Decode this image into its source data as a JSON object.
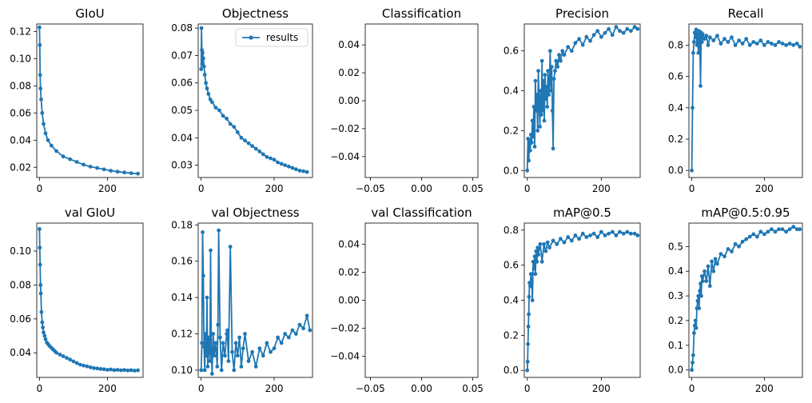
{
  "chart_data": [
    {
      "type": "line",
      "title": "GIoU",
      "xlim": [
        -8,
        305
      ],
      "ylim": [
        0.0125,
        0.1255
      ],
      "xticks": [
        0,
        200
      ],
      "xtick_labels": [
        "0",
        "200"
      ],
      "yticks": [
        0.02,
        0.04,
        0.06,
        0.08,
        0.1,
        0.12
      ],
      "ytick_labels": [
        "0.02",
        "0.04",
        "0.06",
        "0.08",
        "0.10",
        "0.12"
      ],
      "series": [
        {
          "x": [
            0,
            1,
            2,
            3,
            5,
            8,
            12,
            18,
            25,
            35,
            50,
            70,
            90,
            110,
            130,
            150,
            170,
            190,
            210,
            230,
            250,
            270,
            290
          ],
          "y": [
            0.123,
            0.11,
            0.088,
            0.078,
            0.07,
            0.06,
            0.052,
            0.045,
            0.04,
            0.036,
            0.032,
            0.028,
            0.026,
            0.024,
            0.022,
            0.0205,
            0.0195,
            0.0185,
            0.0175,
            0.0168,
            0.0162,
            0.0157,
            0.0153
          ]
        }
      ]
    },
    {
      "type": "line",
      "title": "Objectness",
      "xlim": [
        -8,
        305
      ],
      "ylim": [
        0.0255,
        0.0815
      ],
      "xticks": [
        0,
        200
      ],
      "xtick_labels": [
        "0",
        "200"
      ],
      "yticks": [
        0.03,
        0.04,
        0.05,
        0.06,
        0.07,
        0.08
      ],
      "ytick_labels": [
        "0.03",
        "0.04",
        "0.05",
        "0.06",
        "0.07",
        "0.08"
      ],
      "legend": {
        "labels": [
          "results"
        ],
        "loc": "upper right"
      },
      "series": [
        {
          "name": "results",
          "x": [
            0,
            1,
            2,
            3,
            4,
            6,
            8,
            10,
            13,
            16,
            20,
            25,
            30,
            40,
            50,
            60,
            70,
            80,
            90,
            100,
            110,
            120,
            130,
            140,
            150,
            160,
            170,
            180,
            190,
            200,
            210,
            220,
            230,
            240,
            250,
            260,
            270,
            280,
            290
          ],
          "y": [
            0.065,
            0.08,
            0.072,
            0.067,
            0.071,
            0.069,
            0.066,
            0.063,
            0.06,
            0.058,
            0.056,
            0.054,
            0.053,
            0.051,
            0.05,
            0.048,
            0.047,
            0.045,
            0.044,
            0.042,
            0.04,
            0.039,
            0.038,
            0.037,
            0.036,
            0.035,
            0.034,
            0.033,
            0.0325,
            0.032,
            0.031,
            0.0305,
            0.03,
            0.0295,
            0.029,
            0.0285,
            0.028,
            0.0278,
            0.0275
          ]
        }
      ]
    },
    {
      "type": "line",
      "title": "Classification",
      "xlim": [
        -0.055,
        0.055
      ],
      "ylim": [
        -0.055,
        0.055
      ],
      "xticks": [
        -0.05,
        0.0,
        0.05
      ],
      "xtick_labels": [
        "−0.05",
        "0.00",
        "0.05"
      ],
      "yticks": [
        -0.04,
        -0.02,
        0.0,
        0.02,
        0.04
      ],
      "ytick_labels": [
        "−0.04",
        "−0.02",
        "0.00",
        "0.02",
        "0.04"
      ],
      "series": []
    },
    {
      "type": "line",
      "title": "Precision",
      "xlim": [
        -8,
        305
      ],
      "ylim": [
        -0.035,
        0.735
      ],
      "xticks": [
        0,
        200
      ],
      "xtick_labels": [
        "0",
        "200"
      ],
      "yticks": [
        0.0,
        0.2,
        0.4,
        0.6
      ],
      "ytick_labels": [
        "0.0",
        "0.2",
        "0.4",
        "0.6"
      ],
      "series": [
        {
          "x": [
            0,
            2,
            4,
            6,
            8,
            10,
            12,
            14,
            16,
            18,
            20,
            22,
            24,
            26,
            28,
            30,
            32,
            34,
            36,
            38,
            40,
            42,
            44,
            46,
            48,
            50,
            52,
            54,
            56,
            58,
            60,
            62,
            64,
            66,
            68,
            70,
            72,
            75,
            78,
            82,
            86,
            90,
            95,
            100,
            110,
            120,
            130,
            140,
            150,
            160,
            170,
            180,
            190,
            200,
            210,
            220,
            230,
            240,
            250,
            260,
            270,
            280,
            290,
            298
          ],
          "y": [
            0.0,
            0.16,
            0.05,
            0.15,
            0.1,
            0.18,
            0.14,
            0.25,
            0.17,
            0.32,
            0.12,
            0.45,
            0.3,
            0.38,
            0.2,
            0.5,
            0.35,
            0.22,
            0.4,
            0.28,
            0.55,
            0.3,
            0.45,
            0.25,
            0.48,
            0.36,
            0.42,
            0.32,
            0.5,
            0.38,
            0.44,
            0.6,
            0.4,
            0.52,
            0.3,
            0.11,
            0.46,
            0.5,
            0.55,
            0.52,
            0.58,
            0.55,
            0.6,
            0.58,
            0.62,
            0.6,
            0.64,
            0.66,
            0.63,
            0.67,
            0.65,
            0.68,
            0.7,
            0.67,
            0.69,
            0.71,
            0.68,
            0.72,
            0.7,
            0.69,
            0.71,
            0.7,
            0.72,
            0.71
          ]
        }
      ]
    },
    {
      "type": "line",
      "title": "Recall",
      "xlim": [
        -8,
        305
      ],
      "ylim": [
        -0.045,
        0.935
      ],
      "xticks": [
        0,
        200
      ],
      "xtick_labels": [
        "0",
        "200"
      ],
      "yticks": [
        0.0,
        0.2,
        0.4,
        0.6,
        0.8
      ],
      "ytick_labels": [
        "0.0",
        "0.2",
        "0.4",
        "0.6",
        "0.8"
      ],
      "series": [
        {
          "x": [
            0,
            2,
            4,
            6,
            8,
            10,
            12,
            14,
            16,
            18,
            20,
            22,
            24,
            26,
            28,
            30,
            35,
            40,
            45,
            50,
            60,
            70,
            80,
            90,
            100,
            110,
            120,
            130,
            140,
            150,
            160,
            170,
            180,
            190,
            200,
            210,
            220,
            230,
            240,
            250,
            260,
            270,
            280,
            290,
            298
          ],
          "y": [
            0.0,
            0.4,
            0.75,
            0.82,
            0.88,
            0.85,
            0.9,
            0.8,
            0.87,
            0.75,
            0.89,
            0.86,
            0.54,
            0.88,
            0.82,
            0.87,
            0.84,
            0.86,
            0.8,
            0.85,
            0.83,
            0.86,
            0.81,
            0.84,
            0.82,
            0.85,
            0.8,
            0.83,
            0.81,
            0.84,
            0.8,
            0.82,
            0.81,
            0.83,
            0.8,
            0.82,
            0.81,
            0.8,
            0.82,
            0.81,
            0.8,
            0.81,
            0.8,
            0.81,
            0.79
          ]
        }
      ]
    },
    {
      "type": "line",
      "title": "val GIoU",
      "xlim": [
        -8,
        305
      ],
      "ylim": [
        0.0255,
        0.1165
      ],
      "xticks": [
        0,
        200
      ],
      "xtick_labels": [
        "0",
        "200"
      ],
      "yticks": [
        0.04,
        0.06,
        0.08,
        0.1
      ],
      "ytick_labels": [
        "0.04",
        "0.06",
        "0.08",
        "0.10"
      ],
      "series": [
        {
          "x": [
            0,
            1,
            2,
            3,
            4,
            6,
            8,
            10,
            12,
            15,
            18,
            22,
            26,
            30,
            35,
            40,
            45,
            50,
            60,
            70,
            80,
            90,
            100,
            110,
            120,
            130,
            140,
            150,
            160,
            170,
            180,
            190,
            200,
            210,
            220,
            230,
            240,
            250,
            260,
            270,
            280,
            290
          ],
          "y": [
            0.113,
            0.102,
            0.092,
            0.08,
            0.075,
            0.064,
            0.058,
            0.055,
            0.052,
            0.05,
            0.048,
            0.046,
            0.045,
            0.044,
            0.043,
            0.042,
            0.041,
            0.04,
            0.039,
            0.038,
            0.037,
            0.036,
            0.035,
            0.034,
            0.033,
            0.0325,
            0.032,
            0.0315,
            0.031,
            0.0308,
            0.0305,
            0.0303,
            0.03,
            0.0302,
            0.0298,
            0.03,
            0.0297,
            0.0299,
            0.0296,
            0.0298,
            0.0295,
            0.0297
          ]
        }
      ]
    },
    {
      "type": "line",
      "title": "val Objectness",
      "xlim": [
        -8,
        305
      ],
      "ylim": [
        0.096,
        0.181
      ],
      "xticks": [
        0,
        200
      ],
      "xtick_labels": [
        "0",
        "200"
      ],
      "yticks": [
        0.1,
        0.12,
        0.14,
        0.16,
        0.18
      ],
      "ytick_labels": [
        "0.10",
        "0.12",
        "0.14",
        "0.16",
        "0.18"
      ],
      "series": [
        {
          "x": [
            0,
            2,
            4,
            6,
            8,
            10,
            12,
            14,
            16,
            18,
            20,
            22,
            24,
            26,
            28,
            30,
            33,
            36,
            40,
            44,
            46,
            48,
            52,
            56,
            60,
            65,
            70,
            72,
            75,
            80,
            85,
            90,
            95,
            100,
            105,
            110,
            115,
            120,
            130,
            140,
            150,
            160,
            170,
            180,
            190,
            200,
            210,
            220,
            230,
            240,
            250,
            260,
            270,
            280,
            290,
            298
          ],
          "y": [
            0.1,
            0.115,
            0.176,
            0.152,
            0.113,
            0.1,
            0.12,
            0.108,
            0.14,
            0.102,
            0.118,
            0.112,
            0.105,
            0.166,
            0.11,
            0.098,
            0.12,
            0.108,
            0.115,
            0.102,
            0.125,
            0.177,
            0.118,
            0.1,
            0.115,
            0.108,
            0.12,
            0.122,
            0.105,
            0.168,
            0.11,
            0.1,
            0.115,
            0.108,
            0.118,
            0.102,
            0.112,
            0.12,
            0.105,
            0.11,
            0.102,
            0.112,
            0.108,
            0.115,
            0.11,
            0.112,
            0.118,
            0.115,
            0.12,
            0.118,
            0.122,
            0.12,
            0.125,
            0.123,
            0.13,
            0.122
          ]
        }
      ]
    },
    {
      "type": "line",
      "title": "val Classification",
      "xlim": [
        -0.055,
        0.055
      ],
      "ylim": [
        -0.055,
        0.055
      ],
      "xticks": [
        -0.05,
        0.0,
        0.05
      ],
      "xtick_labels": [
        "−0.05",
        "0.00",
        "0.05"
      ],
      "yticks": [
        -0.04,
        -0.02,
        0.0,
        0.02,
        0.04
      ],
      "ytick_labels": [
        "−0.04",
        "−0.02",
        "0.00",
        "0.02",
        "0.04"
      ],
      "series": []
    },
    {
      "type": "line",
      "title": "mAP@0.5",
      "xlim": [
        -8,
        305
      ],
      "ylim": [
        -0.04,
        0.84
      ],
      "xticks": [
        0,
        200
      ],
      "xtick_labels": [
        "0",
        "200"
      ],
      "yticks": [
        0.0,
        0.2,
        0.4,
        0.6,
        0.8
      ],
      "ytick_labels": [
        "0.0",
        "0.2",
        "0.4",
        "0.6",
        "0.8"
      ],
      "series": [
        {
          "x": [
            0,
            1,
            2,
            3,
            4,
            5,
            6,
            8,
            10,
            12,
            14,
            16,
            18,
            20,
            22,
            24,
            26,
            28,
            30,
            35,
            40,
            45,
            50,
            55,
            60,
            70,
            80,
            90,
            100,
            110,
            120,
            130,
            140,
            150,
            160,
            170,
            180,
            190,
            200,
            210,
            220,
            230,
            240,
            250,
            260,
            270,
            280,
            290,
            298
          ],
          "y": [
            0.0,
            0.05,
            0.15,
            0.25,
            0.32,
            0.42,
            0.5,
            0.48,
            0.55,
            0.5,
            0.4,
            0.62,
            0.58,
            0.65,
            0.55,
            0.68,
            0.62,
            0.7,
            0.66,
            0.72,
            0.62,
            0.72,
            0.68,
            0.73,
            0.7,
            0.74,
            0.72,
            0.75,
            0.73,
            0.76,
            0.74,
            0.77,
            0.75,
            0.78,
            0.76,
            0.77,
            0.78,
            0.76,
            0.79,
            0.77,
            0.78,
            0.79,
            0.77,
            0.79,
            0.78,
            0.79,
            0.78,
            0.78,
            0.77
          ]
        }
      ]
    },
    {
      "type": "line",
      "title": "mAP@0.5:0.95",
      "xlim": [
        -8,
        305
      ],
      "ylim": [
        -0.03,
        0.595
      ],
      "xticks": [
        0,
        200
      ],
      "xtick_labels": [
        "0",
        "200"
      ],
      "yticks": [
        0.0,
        0.1,
        0.2,
        0.3,
        0.4,
        0.5
      ],
      "ytick_labels": [
        "0.0",
        "0.1",
        "0.2",
        "0.3",
        "0.4",
        "0.5"
      ],
      "series": [
        {
          "x": [
            0,
            2,
            4,
            6,
            8,
            10,
            12,
            14,
            16,
            18,
            20,
            22,
            24,
            26,
            28,
            30,
            35,
            40,
            45,
            50,
            55,
            60,
            65,
            70,
            80,
            90,
            100,
            110,
            120,
            130,
            140,
            150,
            160,
            170,
            180,
            190,
            200,
            210,
            220,
            230,
            240,
            250,
            260,
            270,
            280,
            290,
            298
          ],
          "y": [
            0.0,
            0.03,
            0.06,
            0.15,
            0.18,
            0.2,
            0.17,
            0.25,
            0.28,
            0.3,
            0.25,
            0.32,
            0.35,
            0.3,
            0.38,
            0.36,
            0.4,
            0.36,
            0.42,
            0.34,
            0.44,
            0.4,
            0.45,
            0.43,
            0.47,
            0.46,
            0.49,
            0.48,
            0.51,
            0.5,
            0.52,
            0.53,
            0.54,
            0.55,
            0.54,
            0.56,
            0.55,
            0.56,
            0.57,
            0.56,
            0.57,
            0.57,
            0.56,
            0.57,
            0.58,
            0.57,
            0.57
          ]
        }
      ]
    }
  ]
}
